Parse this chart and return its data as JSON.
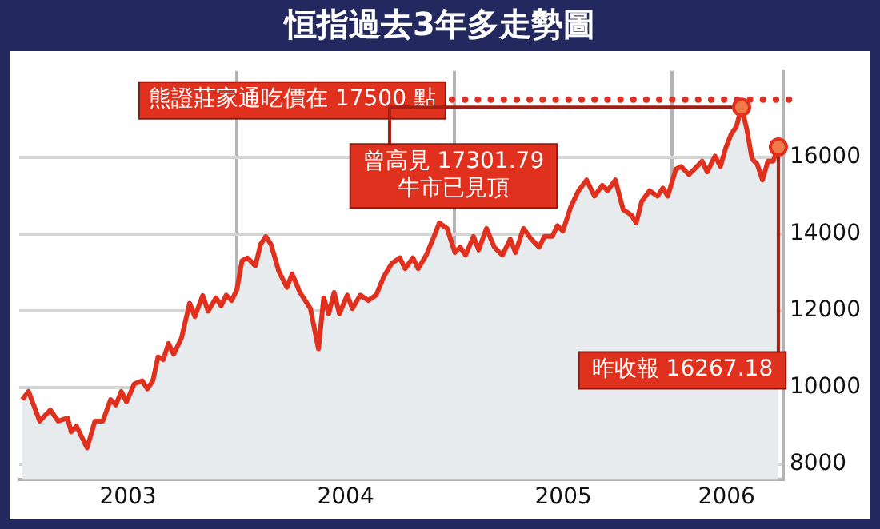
{
  "chart_data": {
    "type": "area",
    "title": "恒指過去3年多走勢圖",
    "x": [
      2003.014,
      2003.043,
      2003.094,
      2003.143,
      2003.179,
      2003.222,
      2003.239,
      2003.263,
      2003.312,
      2003.348,
      2003.384,
      2003.42,
      2003.444,
      2003.469,
      2003.493,
      2003.529,
      2003.565,
      2003.589,
      2003.614,
      2003.638,
      2003.662,
      2003.686,
      2003.71,
      2003.746,
      2003.783,
      2003.807,
      2003.843,
      2003.868,
      2003.904,
      2003.928,
      2003.951,
      2003.976,
      2004.0,
      2004.024,
      2004.049,
      2004.085,
      2004.109,
      2004.133,
      2004.157,
      2004.193,
      2004.23,
      2004.254,
      2004.29,
      2004.338,
      2004.375,
      2004.399,
      2004.422,
      2004.447,
      2004.471,
      2004.507,
      2004.531,
      2004.567,
      2004.604,
      2004.64,
      2004.676,
      2004.712,
      2004.749,
      2004.773,
      2004.809,
      2004.833,
      2004.87,
      2004.906,
      2004.93,
      2004.966,
      2005.002,
      2005.026,
      2005.051,
      2005.087,
      2005.111,
      2005.147,
      2005.183,
      2005.22,
      2005.256,
      2005.28,
      2005.317,
      2005.353,
      2005.389,
      2005.413,
      2005.449,
      2005.473,
      2005.498,
      2005.534,
      2005.57,
      2005.607,
      2005.643,
      2005.679,
      2005.703,
      2005.739,
      2005.775,
      2005.812,
      2005.835,
      2005.86,
      2005.896,
      2005.933,
      2005.957,
      2005.98,
      2006.017,
      2006.041,
      2006.077,
      2006.114,
      2006.138,
      2006.161,
      2006.197,
      2006.222,
      2006.246,
      2006.27,
      2006.295,
      2006.319,
      2006.343,
      2006.367,
      2006.391,
      2006.415,
      2006.44,
      2006.464,
      2006.488
    ],
    "series": [
      {
        "color": "#e0301e",
        "values": [
          9690,
          9900,
          9130,
          9420,
          9130,
          9210,
          8850,
          9000,
          8430,
          9130,
          9130,
          9690,
          9550,
          9900,
          9630,
          10100,
          10180,
          9970,
          10180,
          10800,
          10730,
          11150,
          10870,
          11300,
          12200,
          11850,
          12400,
          11990,
          12340,
          12130,
          12410,
          12270,
          12550,
          13310,
          13380,
          13170,
          13730,
          13940,
          13730,
          13030,
          12610,
          12960,
          12480,
          12060,
          11010,
          12340,
          11920,
          12480,
          11920,
          12410,
          12060,
          12410,
          12270,
          12410,
          12900,
          13240,
          13380,
          13100,
          13380,
          13100,
          13450,
          13940,
          14290,
          14150,
          13520,
          13660,
          13450,
          13940,
          13590,
          14150,
          13660,
          13450,
          13870,
          13520,
          14150,
          13870,
          13660,
          13940,
          13940,
          14220,
          14080,
          14710,
          15130,
          15410,
          14990,
          15270,
          15130,
          15410,
          14640,
          14500,
          14290,
          14850,
          15130,
          14990,
          15200,
          14990,
          15690,
          15760,
          15550,
          15760,
          15900,
          15620,
          16030,
          15760,
          16240,
          16590,
          16800,
          17301.79,
          16730,
          15960,
          15820,
          15410,
          15900,
          15900,
          16267.18
        ]
      }
    ],
    "xlim": [
      2003,
      2006.51
    ],
    "xticks": [
      {
        "value": 2003.5,
        "label": "2003"
      },
      {
        "value": 2004,
        "label": null
      },
      {
        "value": 2004.5,
        "label": "2004"
      },
      {
        "value": 2005,
        "label": null
      },
      {
        "value": 2005.5,
        "label": "2005"
      },
      {
        "value": 2006,
        "label": null
      },
      {
        "value": 2006.25,
        "label": "2006"
      }
    ],
    "ylim": [
      7600,
      18250
    ],
    "yticks": [
      8000,
      10000,
      12000,
      14000,
      16000
    ],
    "grid": true,
    "legend": false,
    "marker": "none",
    "ref_lines": [
      {
        "axis": "y",
        "value": 17500,
        "label": "熊證莊家通吃價在 17500 點",
        "color": "#e0301e",
        "line_style": "dotted"
      }
    ],
    "annotations": [
      {
        "text": "曾高見 17301.79\n牛市已見頂",
        "x": 2006.319,
        "y": 17301.79
      },
      {
        "text": "昨收報 16267.18",
        "x": 2006.488,
        "y": 16267.18
      }
    ]
  }
}
